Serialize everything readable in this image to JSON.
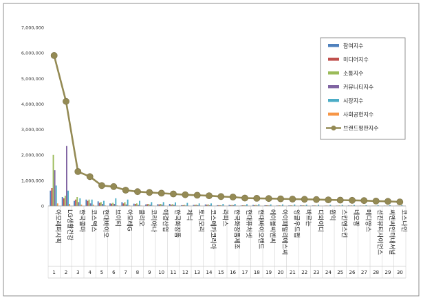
{
  "chart_data": {
    "type": "bar",
    "title": "",
    "xlabel": "",
    "ylabel": "",
    "ylim": [
      0,
      7000000
    ],
    "y_ticks": [
      "0",
      "1,000,000",
      "2,000,000",
      "3,000,000",
      "4,000,000",
      "5,000,000",
      "6,000,000",
      "7,000,000"
    ],
    "grid": false,
    "legend_position": "top-right",
    "categories": [
      "아모레퍼시픽",
      "LG생활건강",
      "한국콜마",
      "코스맥스",
      "현대바이오",
      "브이티",
      "아모레G",
      "클리오",
      "코리아나",
      "애경산업",
      "한국화장품",
      "제닉",
      "토니모리",
      "코스메카코리아",
      "라파스",
      "한국화장품제조",
      "현대퓨처넷",
      "현대바이오랜드",
      "에이블씨엔씨",
      "아이패밀리에스씨",
      "잉글우드랩",
      "바르는",
      "디와이디",
      "원익",
      "스킨앤스킨",
      "네오팜",
      "메디앙스",
      "선진뷰티사이언스",
      "씨엔씨인터내셔널",
      "코스나인"
    ],
    "ranks": [
      "1",
      "2",
      "3",
      "4",
      "5",
      "6",
      "7",
      "8",
      "9",
      "10",
      "11",
      "12",
      "13",
      "14",
      "15",
      "16",
      "17",
      "18",
      "19",
      "20",
      "21",
      "22",
      "23",
      "24",
      "25",
      "26",
      "27",
      "28",
      "29",
      "30"
    ],
    "series": [
      {
        "name": "참여지수",
        "color": "#4f81bd",
        "values": [
          600000,
          350000,
          200000,
          250000,
          180000,
          100000,
          150000,
          90000,
          60000,
          70000,
          80000,
          30000,
          40000,
          60000,
          30000,
          40000,
          20000,
          40000,
          30000,
          20000,
          20000,
          30000,
          20000,
          10000,
          15000,
          20000,
          15000,
          10000,
          15000,
          10000
        ]
      },
      {
        "name": "미디어지수",
        "color": "#c0504d",
        "values": [
          700000,
          300000,
          250000,
          200000,
          120000,
          90000,
          100000,
          80000,
          70000,
          60000,
          50000,
          30000,
          40000,
          50000,
          30000,
          30000,
          25000,
          30000,
          25000,
          20000,
          20000,
          20000,
          20000,
          15000,
          15000,
          15000,
          10000,
          10000,
          10000,
          10000
        ]
      },
      {
        "name": "소통지수",
        "color": "#9bbb59",
        "values": [
          2000000,
          400000,
          350000,
          250000,
          150000,
          120000,
          150000,
          100000,
          80000,
          80000,
          70000,
          40000,
          50000,
          60000,
          30000,
          40000,
          30000,
          40000,
          30000,
          25000,
          25000,
          25000,
          20000,
          15000,
          20000,
          20000,
          15000,
          15000,
          15000,
          10000
        ]
      },
      {
        "name": "커뮤니티지수",
        "color": "#8064a2",
        "values": [
          1400000,
          2350000,
          150000,
          100000,
          80000,
          80000,
          60000,
          40000,
          50000,
          50000,
          40000,
          20000,
          30000,
          30000,
          20000,
          30000,
          20000,
          20000,
          20000,
          15000,
          10000,
          15000,
          10000,
          10000,
          10000,
          10000,
          10000,
          10000,
          10000,
          5000
        ]
      },
      {
        "name": "시장지수",
        "color": "#4bacc6",
        "values": [
          800000,
          600000,
          300000,
          250000,
          200000,
          300000,
          250000,
          200000,
          150000,
          150000,
          140000,
          120000,
          100000,
          100000,
          80000,
          80000,
          70000,
          70000,
          60000,
          60000,
          60000,
          50000,
          50000,
          40000,
          40000,
          40000,
          30000,
          30000,
          30000,
          30000
        ]
      },
      {
        "name": "사회공헌지수",
        "color": "#f79646",
        "values": [
          100000,
          80000,
          50000,
          50000,
          20000,
          20000,
          20000,
          15000,
          15000,
          15000,
          10000,
          10000,
          10000,
          10000,
          10000,
          10000,
          5000,
          10000,
          5000,
          5000,
          5000,
          5000,
          5000,
          5000,
          5000,
          5000,
          5000,
          5000,
          5000,
          5000
        ]
      }
    ],
    "line_series": {
      "name": "브랜드평판지수",
      "color": "#948a54",
      "values": [
        5900000,
        4100000,
        1350000,
        1150000,
        800000,
        760000,
        620000,
        560000,
        530000,
        500000,
        470000,
        440000,
        420000,
        400000,
        370000,
        350000,
        310000,
        300000,
        290000,
        280000,
        270000,
        260000,
        250000,
        240000,
        230000,
        220000,
        210000,
        190000,
        180000,
        160000
      ]
    }
  }
}
